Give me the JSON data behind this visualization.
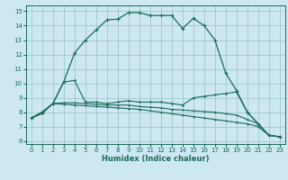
{
  "xlabel": "Humidex (Indice chaleur)",
  "bg_color": "#cde8f0",
  "grid_color": "#9fc8c8",
  "line_color": "#1a6b5a",
  "xlim": [
    -0.5,
    23.5
  ],
  "ylim": [
    5.8,
    15.4
  ],
  "yticks": [
    6,
    7,
    8,
    9,
    10,
    11,
    12,
    13,
    14,
    15
  ],
  "xticks": [
    0,
    1,
    2,
    3,
    4,
    5,
    6,
    7,
    8,
    9,
    10,
    11,
    12,
    13,
    14,
    15,
    16,
    17,
    18,
    19,
    20,
    21,
    22,
    23
  ],
  "line1_x": [
    0,
    1,
    2,
    3,
    4,
    5,
    6,
    7,
    8,
    9,
    10,
    11,
    12,
    13,
    14,
    15,
    16,
    17,
    18,
    19,
    20,
    21,
    22,
    23
  ],
  "line1_y": [
    7.6,
    8.0,
    8.6,
    10.1,
    12.1,
    13.0,
    13.7,
    14.4,
    14.45,
    14.9,
    14.9,
    14.7,
    14.7,
    14.7,
    13.8,
    14.5,
    14.0,
    13.0,
    10.7,
    9.5,
    8.0,
    7.2,
    6.4,
    6.3
  ],
  "line2_x": [
    0,
    1,
    2,
    3,
    4,
    5,
    6,
    7,
    8,
    9,
    10,
    11,
    12,
    13,
    14,
    15,
    16,
    17,
    18,
    19,
    20,
    21,
    22,
    23
  ],
  "line2_y": [
    7.6,
    8.0,
    8.6,
    10.1,
    10.2,
    8.7,
    8.7,
    8.6,
    8.7,
    8.8,
    8.7,
    8.7,
    8.7,
    8.6,
    8.5,
    9.0,
    9.1,
    9.2,
    9.3,
    9.4,
    8.0,
    7.2,
    6.4,
    6.3
  ],
  "line3_x": [
    0,
    1,
    2,
    3,
    4,
    5,
    6,
    7,
    8,
    9,
    10,
    11,
    12,
    13,
    14,
    15,
    16,
    17,
    18,
    19,
    20,
    21,
    22,
    23
  ],
  "line3_y": [
    7.6,
    8.0,
    8.6,
    8.65,
    8.65,
    8.6,
    8.55,
    8.5,
    8.5,
    8.5,
    8.4,
    8.35,
    8.3,
    8.2,
    8.15,
    8.1,
    8.05,
    8.0,
    7.9,
    7.8,
    7.5,
    7.2,
    6.4,
    6.3
  ],
  "line4_x": [
    0,
    1,
    2,
    3,
    4,
    5,
    6,
    7,
    8,
    9,
    10,
    11,
    12,
    13,
    14,
    15,
    16,
    17,
    18,
    19,
    20,
    21,
    22,
    23
  ],
  "line4_y": [
    7.6,
    7.9,
    8.6,
    8.55,
    8.5,
    8.45,
    8.4,
    8.35,
    8.3,
    8.25,
    8.2,
    8.1,
    8.0,
    7.9,
    7.8,
    7.7,
    7.6,
    7.5,
    7.4,
    7.3,
    7.2,
    7.0,
    6.4,
    6.3
  ]
}
